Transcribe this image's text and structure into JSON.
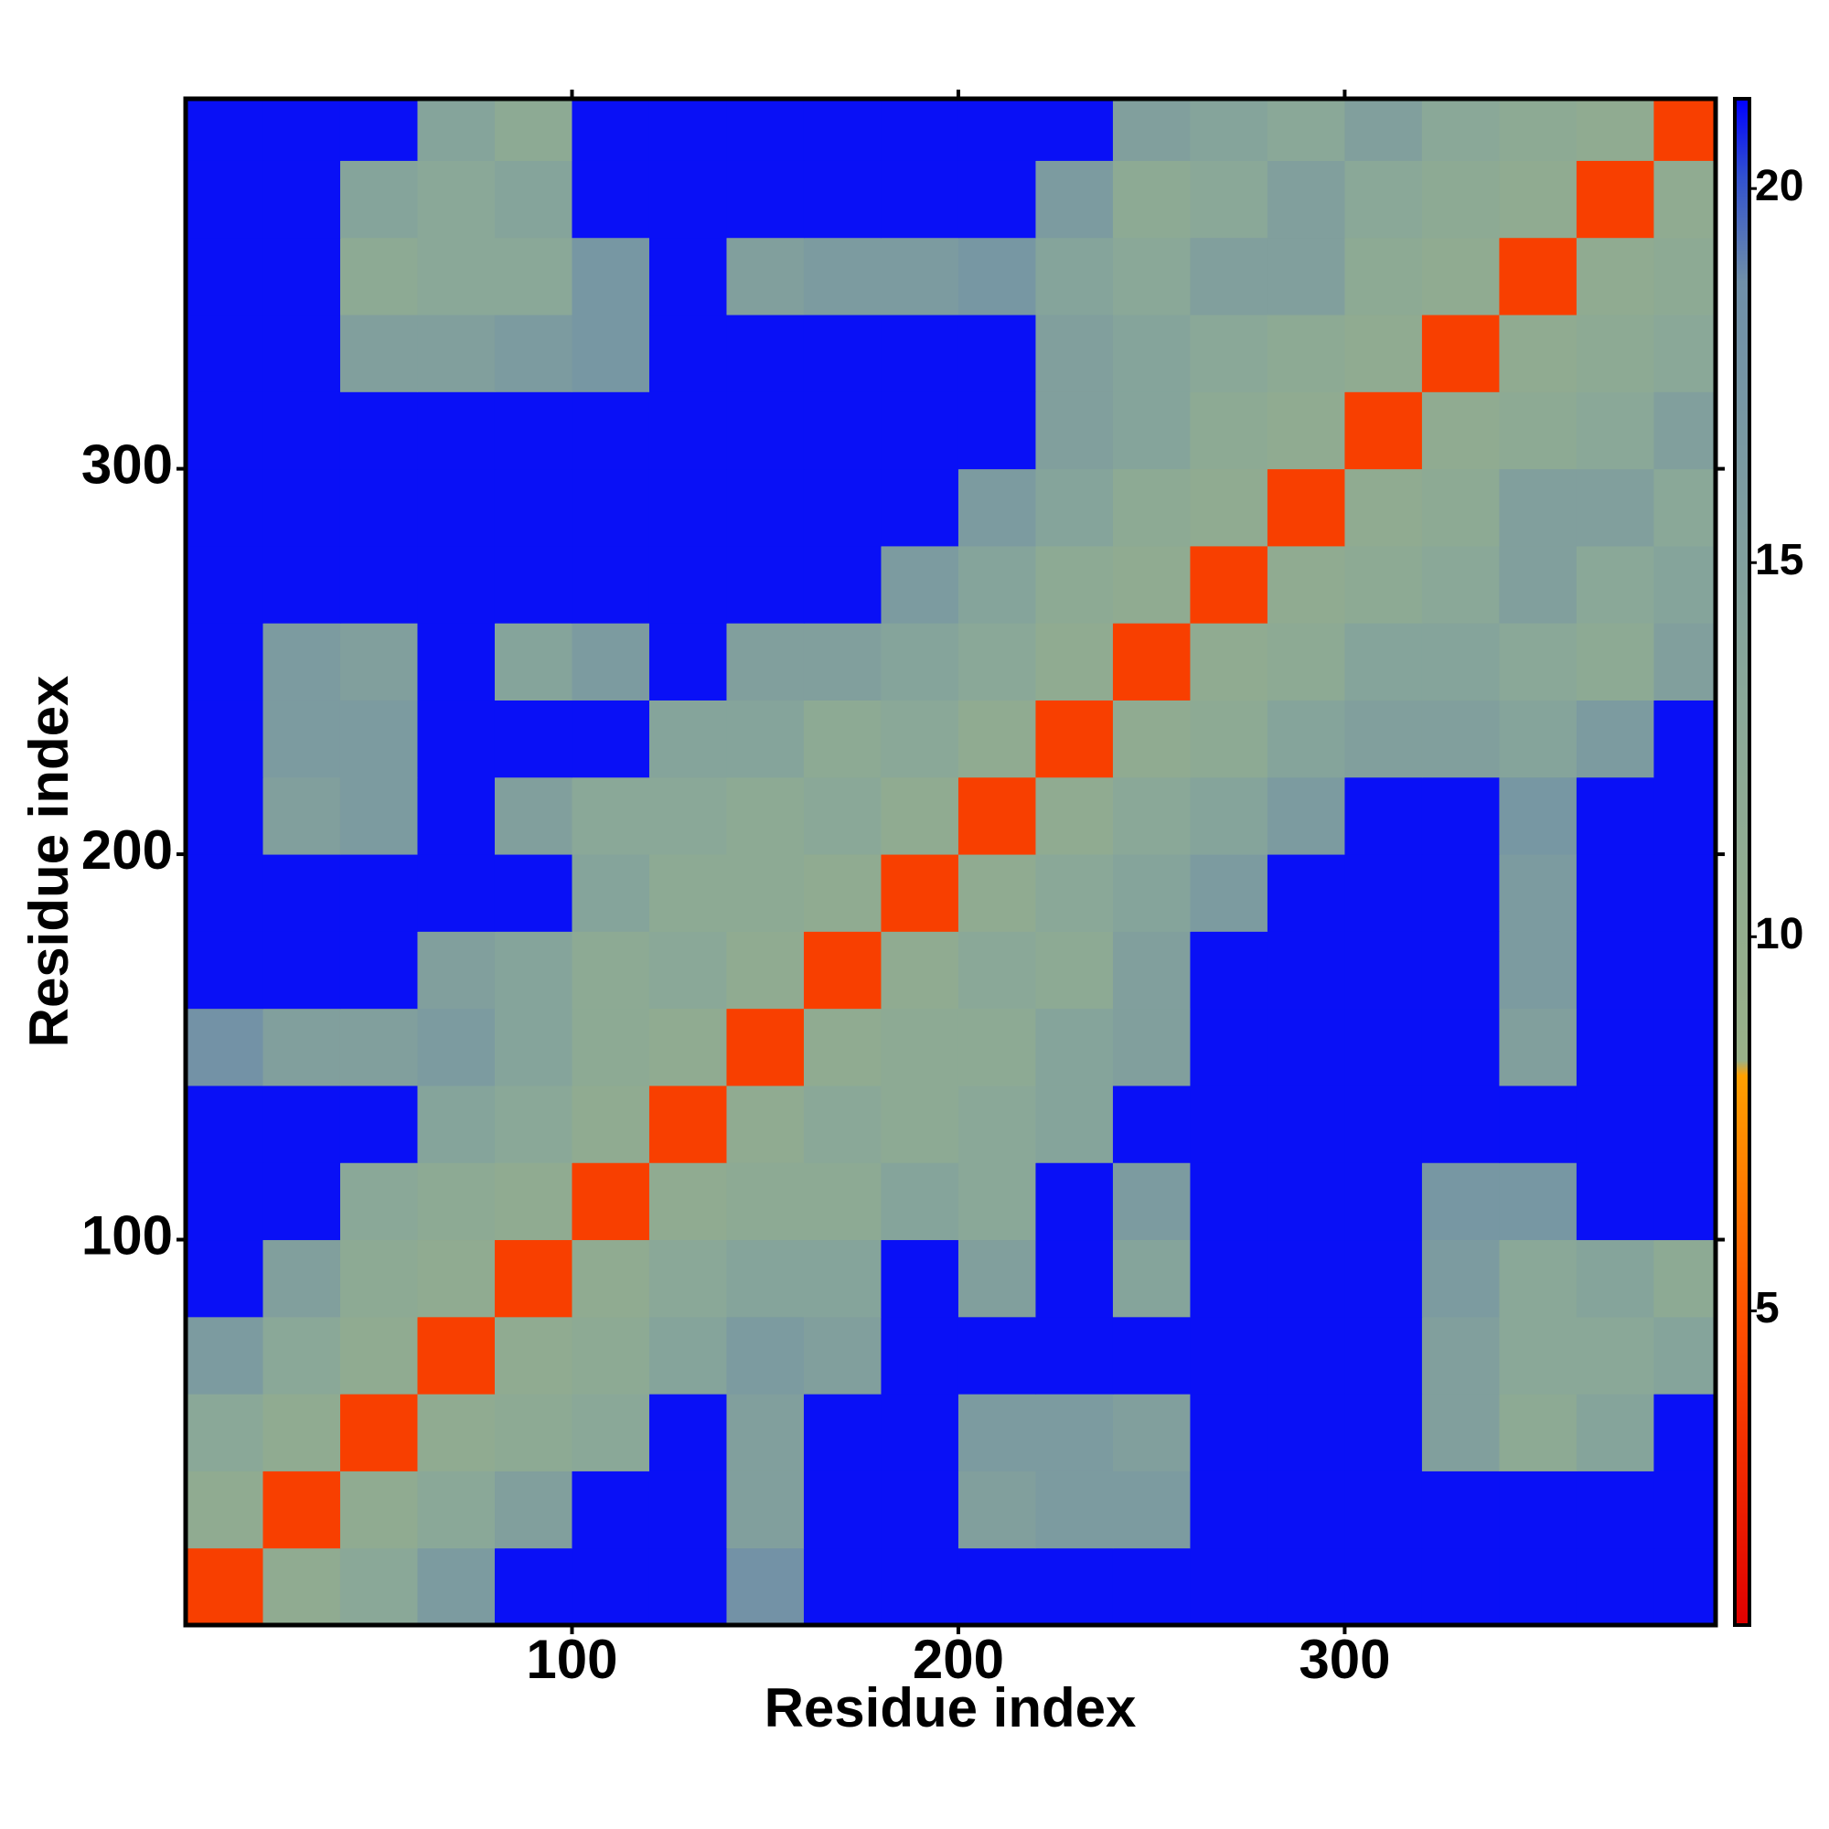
{
  "chart_data": {
    "type": "heatmap",
    "xlabel": "Residue index",
    "ylabel": "Residue index",
    "x_edges": [
      0,
      20,
      40,
      60,
      80,
      100,
      120,
      140,
      160,
      180,
      200,
      220,
      240,
      260,
      280,
      300,
      320,
      340,
      360,
      380,
      396
    ],
    "y_edges": [
      0,
      20,
      40,
      60,
      80,
      100,
      120,
      140,
      160,
      180,
      200,
      220,
      240,
      260,
      280,
      300,
      320,
      340,
      360,
      380,
      396
    ],
    "xlim": [
      0,
      396
    ],
    "ylim": [
      0,
      396
    ],
    "xticks": [
      100,
      200,
      300
    ],
    "yticks": [
      100,
      200,
      300
    ],
    "clim": [
      0.8,
      21.2
    ],
    "cticks": [
      5,
      10,
      15,
      20
    ],
    "colormap": [
      [
        0,
        "#e00000"
      ],
      [
        0.2,
        "#ff5000"
      ],
      [
        0.36,
        "#ffa000"
      ],
      [
        0.37,
        "#98b088"
      ],
      [
        0.6,
        "#8aa898"
      ],
      [
        0.88,
        "#6f8fa8"
      ],
      [
        0.95,
        "#3050d0"
      ],
      [
        1,
        "#0000ff"
      ]
    ],
    "z": [
      [
        4,
        11,
        13,
        16,
        21,
        21,
        21,
        18,
        21,
        21,
        21,
        21,
        21,
        21,
        21,
        21,
        21,
        21,
        21,
        21
      ],
      [
        11,
        4,
        11,
        13,
        15,
        21,
        21,
        15,
        21,
        21,
        15,
        16,
        16,
        21,
        21,
        21,
        21,
        21,
        21,
        21
      ],
      [
        13,
        11,
        4,
        11,
        12,
        13,
        21,
        15,
        21,
        21,
        16,
        16,
        15,
        21,
        21,
        21,
        15,
        12,
        14,
        21
      ],
      [
        16,
        13,
        11,
        4,
        11,
        12,
        14,
        16,
        15,
        21,
        21,
        21,
        21,
        21,
        21,
        21,
        15,
        13,
        13,
        14
      ],
      [
        21,
        15,
        12,
        11,
        4,
        11,
        13,
        14,
        14,
        21,
        15,
        21,
        14,
        21,
        21,
        21,
        16,
        13,
        14,
        12
      ],
      [
        21,
        21,
        13,
        12,
        11,
        4,
        11,
        12,
        12,
        14,
        13,
        21,
        16,
        21,
        21,
        21,
        17,
        17,
        21,
        21
      ],
      [
        21,
        21,
        21,
        14,
        13,
        11,
        4,
        11,
        13,
        12,
        13,
        14,
        21,
        21,
        21,
        21,
        21,
        21,
        21,
        21
      ],
      [
        18,
        15,
        15,
        16,
        14,
        12,
        11,
        4,
        11,
        12,
        12,
        14,
        15,
        21,
        21,
        21,
        21,
        15,
        21,
        21
      ],
      [
        21,
        21,
        21,
        15,
        14,
        12,
        13,
        11,
        4,
        11,
        13,
        12,
        15,
        21,
        21,
        21,
        21,
        16,
        21,
        21
      ],
      [
        21,
        21,
        21,
        21,
        21,
        14,
        12,
        12,
        11,
        4,
        11,
        13,
        14,
        16,
        21,
        21,
        21,
        16,
        21,
        21
      ],
      [
        21,
        15,
        16,
        21,
        15,
        13,
        13,
        12,
        13,
        11,
        4,
        11,
        13,
        14,
        16,
        21,
        21,
        17,
        21,
        21
      ],
      [
        21,
        16,
        16,
        21,
        21,
        21,
        14,
        14,
        12,
        13,
        11,
        4,
        11,
        12,
        14,
        15,
        15,
        14,
        16,
        21
      ],
      [
        21,
        16,
        15,
        21,
        14,
        16,
        21,
        15,
        15,
        14,
        13,
        11,
        4,
        11,
        12,
        14,
        14,
        13,
        12,
        15
      ],
      [
        21,
        21,
        21,
        21,
        21,
        21,
        21,
        21,
        21,
        16,
        14,
        12,
        11,
        4,
        11,
        12,
        13,
        15,
        13,
        14
      ],
      [
        21,
        21,
        21,
        21,
        21,
        21,
        21,
        21,
        21,
        21,
        16,
        14,
        12,
        11,
        4,
        11,
        12,
        15,
        15,
        13
      ],
      [
        21,
        21,
        21,
        21,
        21,
        21,
        21,
        21,
        21,
        21,
        21,
        15,
        14,
        12,
        11,
        4,
        11,
        12,
        13,
        15
      ],
      [
        21,
        21,
        15,
        15,
        16,
        17,
        21,
        21,
        21,
        21,
        21,
        15,
        14,
        13,
        12,
        11,
        4,
        11,
        12,
        13
      ],
      [
        21,
        21,
        12,
        13,
        13,
        17,
        21,
        15,
        16,
        16,
        17,
        14,
        13,
        15,
        15,
        12,
        11,
        4,
        11,
        12
      ],
      [
        21,
        21,
        14,
        13,
        14,
        21,
        21,
        21,
        21,
        21,
        21,
        16,
        12,
        13,
        15,
        13,
        12,
        11,
        4,
        11
      ],
      [
        21,
        21,
        21,
        14,
        12,
        21,
        21,
        21,
        21,
        21,
        21,
        21,
        15,
        14,
        13,
        15,
        13,
        12,
        11,
        4
      ]
    ]
  }
}
